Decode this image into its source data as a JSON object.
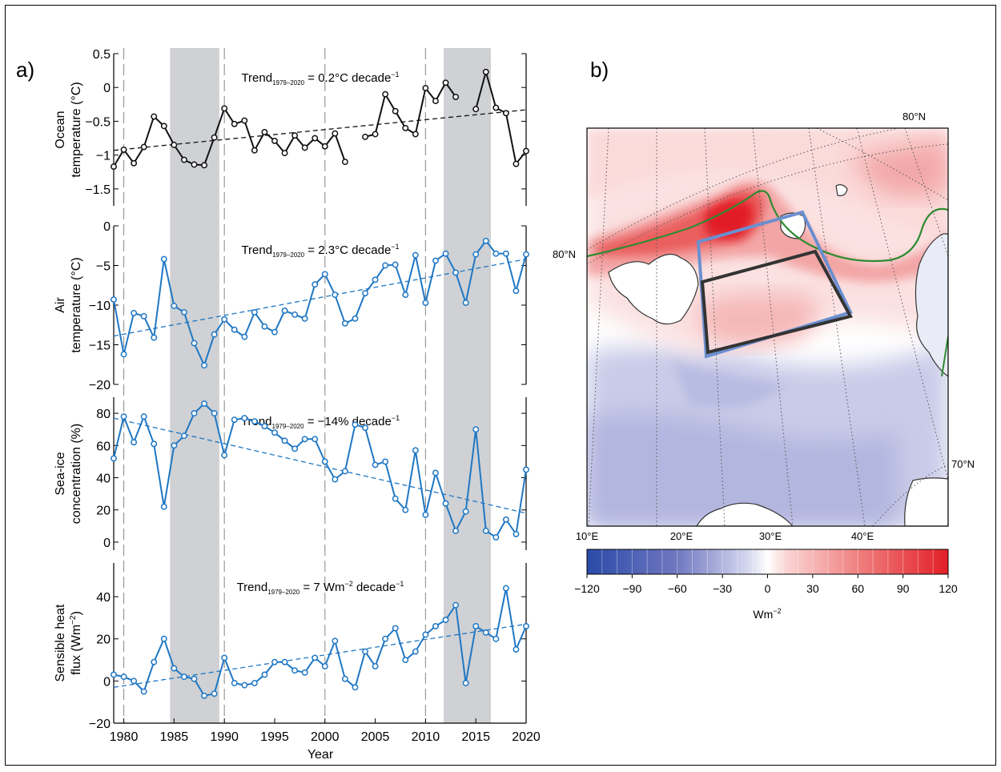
{
  "panel_a": {
    "label": "a)",
    "xlabel": "Year",
    "x_ticks": [
      1980,
      1985,
      1990,
      1995,
      2000,
      2005,
      2010,
      2015,
      2020
    ],
    "xlim": [
      1979,
      2020
    ],
    "shading": [
      [
        1984.6,
        1989.5
      ],
      [
        2011.8,
        2016.5
      ]
    ],
    "dashed_years": [
      1980,
      1990,
      2000,
      2010
    ],
    "trend_prefix": "Trend",
    "trend_sub": "1979–2020"
  },
  "panel_b": {
    "label": "b)",
    "lat_labels": [
      "80°N",
      "80°N",
      "70°N"
    ],
    "lon_labels": [
      "10°E",
      "20°E",
      "30°E",
      "40°E"
    ],
    "colorbar_ticks": [
      "−120",
      "−90",
      "−60",
      "−30",
      "0",
      "30",
      "60",
      "90",
      "120"
    ],
    "colorbar_unit": "Wm",
    "colorbar_unit_sup": "−2",
    "colors": {
      "neg_max": "#2a4aa8",
      "pos_max": "#e21f26",
      "box_blue": "#6b8fd0",
      "box_black": "#333333",
      "contour_green": "#2e8b30",
      "land": "#ffffff"
    }
  },
  "chart_data": [
    {
      "type": "line",
      "id": "ocean",
      "ylabel_line1": "Ocean",
      "ylabel_line2": "temperature (°C)",
      "ylim": [
        -1.75,
        0.5
      ],
      "yticks": [
        0.5,
        0,
        -0.5,
        -1,
        -1.5
      ],
      "ytick_labels": [
        "0.5",
        "0",
        "−0.5",
        "−1",
        "−1.5"
      ],
      "color": "#111111",
      "trend_value": " = 0.2°C decade",
      "trend_sup": "−1",
      "series": [
        {
          "x": [
            1979,
            1980,
            1981,
            1982,
            1983,
            1984,
            1985,
            1986,
            1987,
            1988,
            1989,
            1990,
            1991,
            1992,
            1993,
            1994,
            1995,
            1996,
            1997,
            1998,
            1999,
            2000,
            2001,
            2002,
            2003,
            2004,
            2005,
            2006,
            2007,
            2008,
            2009,
            2010,
            2011,
            2012,
            2013,
            2014,
            2015,
            2016,
            2017,
            2018,
            2019,
            2020
          ],
          "values": [
            -1.17,
            -0.92,
            -1.12,
            -0.88,
            -0.43,
            -0.57,
            -0.85,
            -1.07,
            -1.14,
            -1.15,
            -0.74,
            -0.31,
            -0.54,
            -0.49,
            -0.93,
            -0.66,
            -0.79,
            -0.97,
            -0.71,
            -0.89,
            -0.75,
            -0.87,
            -0.68,
            -1.1,
            null,
            -0.73,
            -0.69,
            -0.1,
            -0.35,
            -0.6,
            -0.69,
            -0.01,
            -0.2,
            0.07,
            -0.14,
            null,
            -0.32,
            0.23,
            -0.3,
            -0.38,
            -1.13,
            -0.94
          ]
        }
      ],
      "trend": [
        -0.93,
        -0.33
      ]
    },
    {
      "type": "line",
      "id": "air",
      "ylabel_line1": "Air",
      "ylabel_line2": "temperature (°C)",
      "ylim": [
        -20,
        0
      ],
      "yticks": [
        0,
        -5,
        -10,
        -15,
        -20
      ],
      "ytick_labels": [
        "0",
        "−5",
        "−10",
        "−15",
        "−20"
      ],
      "color": "#1f77c4",
      "trend_value": " = 2.3°C decade",
      "trend_sup": "−1",
      "series": [
        {
          "x": [
            1979,
            1980,
            1981,
            1982,
            1983,
            1984,
            1985,
            1986,
            1987,
            1988,
            1989,
            1990,
            1991,
            1992,
            1993,
            1994,
            1995,
            1996,
            1997,
            1998,
            1999,
            2000,
            2001,
            2002,
            2003,
            2004,
            2005,
            2006,
            2007,
            2008,
            2009,
            2010,
            2011,
            2012,
            2013,
            2014,
            2015,
            2016,
            2017,
            2018,
            2019,
            2020
          ],
          "values": [
            -9.3,
            -16.2,
            -11.0,
            -11.4,
            -14.1,
            -4.2,
            -10.1,
            -10.9,
            -14.8,
            -17.6,
            -13.7,
            -11.8,
            -13.1,
            -14.0,
            -10.9,
            -12.7,
            -13.4,
            -10.7,
            -11.2,
            -11.7,
            -7.4,
            -6.1,
            -8.7,
            -12.3,
            -11.7,
            -8.5,
            -6.8,
            -5.0,
            -4.9,
            -8.7,
            -3.7,
            -9.7,
            -4.4,
            -3.5,
            -5.9,
            -9.7,
            -3.6,
            -1.9,
            -3.5,
            -3.5,
            -8.2,
            -3.6
          ]
        }
      ],
      "trend": [
        -13.9,
        -4.2
      ]
    },
    {
      "type": "line",
      "id": "seaice",
      "ylabel_line1": "Sea-ice",
      "ylabel_line2": "concentration (%)",
      "ylim": [
        -5,
        90
      ],
      "yticks": [
        80,
        60,
        40,
        20,
        0
      ],
      "ytick_labels": [
        "80",
        "60",
        "40",
        "20",
        "0"
      ],
      "color": "#1f77c4",
      "trend_value": " = −14% decade",
      "trend_sup": "−1",
      "series": [
        {
          "x": [
            1979,
            1980,
            1981,
            1982,
            1983,
            1984,
            1985,
            1986,
            1987,
            1988,
            1989,
            1990,
            1991,
            1992,
            1993,
            1994,
            1995,
            1996,
            1997,
            1998,
            1999,
            2000,
            2001,
            2002,
            2003,
            2004,
            2005,
            2006,
            2007,
            2008,
            2009,
            2010,
            2011,
            2012,
            2013,
            2014,
            2015,
            2016,
            2017,
            2018,
            2019,
            2020
          ],
          "values": [
            52,
            78,
            62,
            78,
            61,
            22,
            60,
            66,
            80,
            86,
            80,
            54,
            76,
            77,
            75,
            72,
            68,
            63,
            58,
            64,
            64,
            50,
            39,
            44,
            73,
            71,
            48,
            50,
            27,
            20,
            57,
            17,
            43,
            24,
            7,
            19,
            70,
            7,
            3,
            14,
            5,
            45
          ]
        }
      ],
      "trend": [
        77,
        18
      ]
    },
    {
      "type": "line",
      "id": "shf",
      "ylabel_line1": "Sensible heat",
      "ylabel_line2": "flux (Wm",
      "ylabel_sup": "−2",
      "ylabel_tail": ")",
      "ylim": [
        -20,
        56
      ],
      "yticks": [
        40,
        20,
        0,
        -20
      ],
      "ytick_labels": [
        "40",
        "20",
        "0",
        "−20"
      ],
      "color": "#1f77c4",
      "trend_value": " = 7 Wm",
      "trend_sup": "−2",
      "trend_value2": " decade",
      "trend_sup2": "−1",
      "series": [
        {
          "x": [
            1979,
            1980,
            1981,
            1982,
            1983,
            1984,
            1985,
            1986,
            1987,
            1988,
            1989,
            1990,
            1991,
            1992,
            1993,
            1994,
            1995,
            1996,
            1997,
            1998,
            1999,
            2000,
            2001,
            2002,
            2003,
            2004,
            2005,
            2006,
            2007,
            2008,
            2009,
            2010,
            2011,
            2012,
            2013,
            2014,
            2015,
            2016,
            2017,
            2018,
            2019,
            2020
          ],
          "values": [
            3,
            2,
            0,
            -5,
            9,
            20,
            6,
            2,
            1,
            -7,
            -6,
            11,
            -1,
            -2,
            -1,
            3,
            9,
            9,
            5,
            4,
            11,
            7,
            19,
            1,
            -3,
            14,
            7,
            20,
            25,
            10,
            14,
            22,
            26,
            29,
            36,
            -1,
            26,
            23,
            20,
            44,
            15,
            26
          ]
        }
      ],
      "trend": [
        -3,
        27
      ]
    }
  ]
}
